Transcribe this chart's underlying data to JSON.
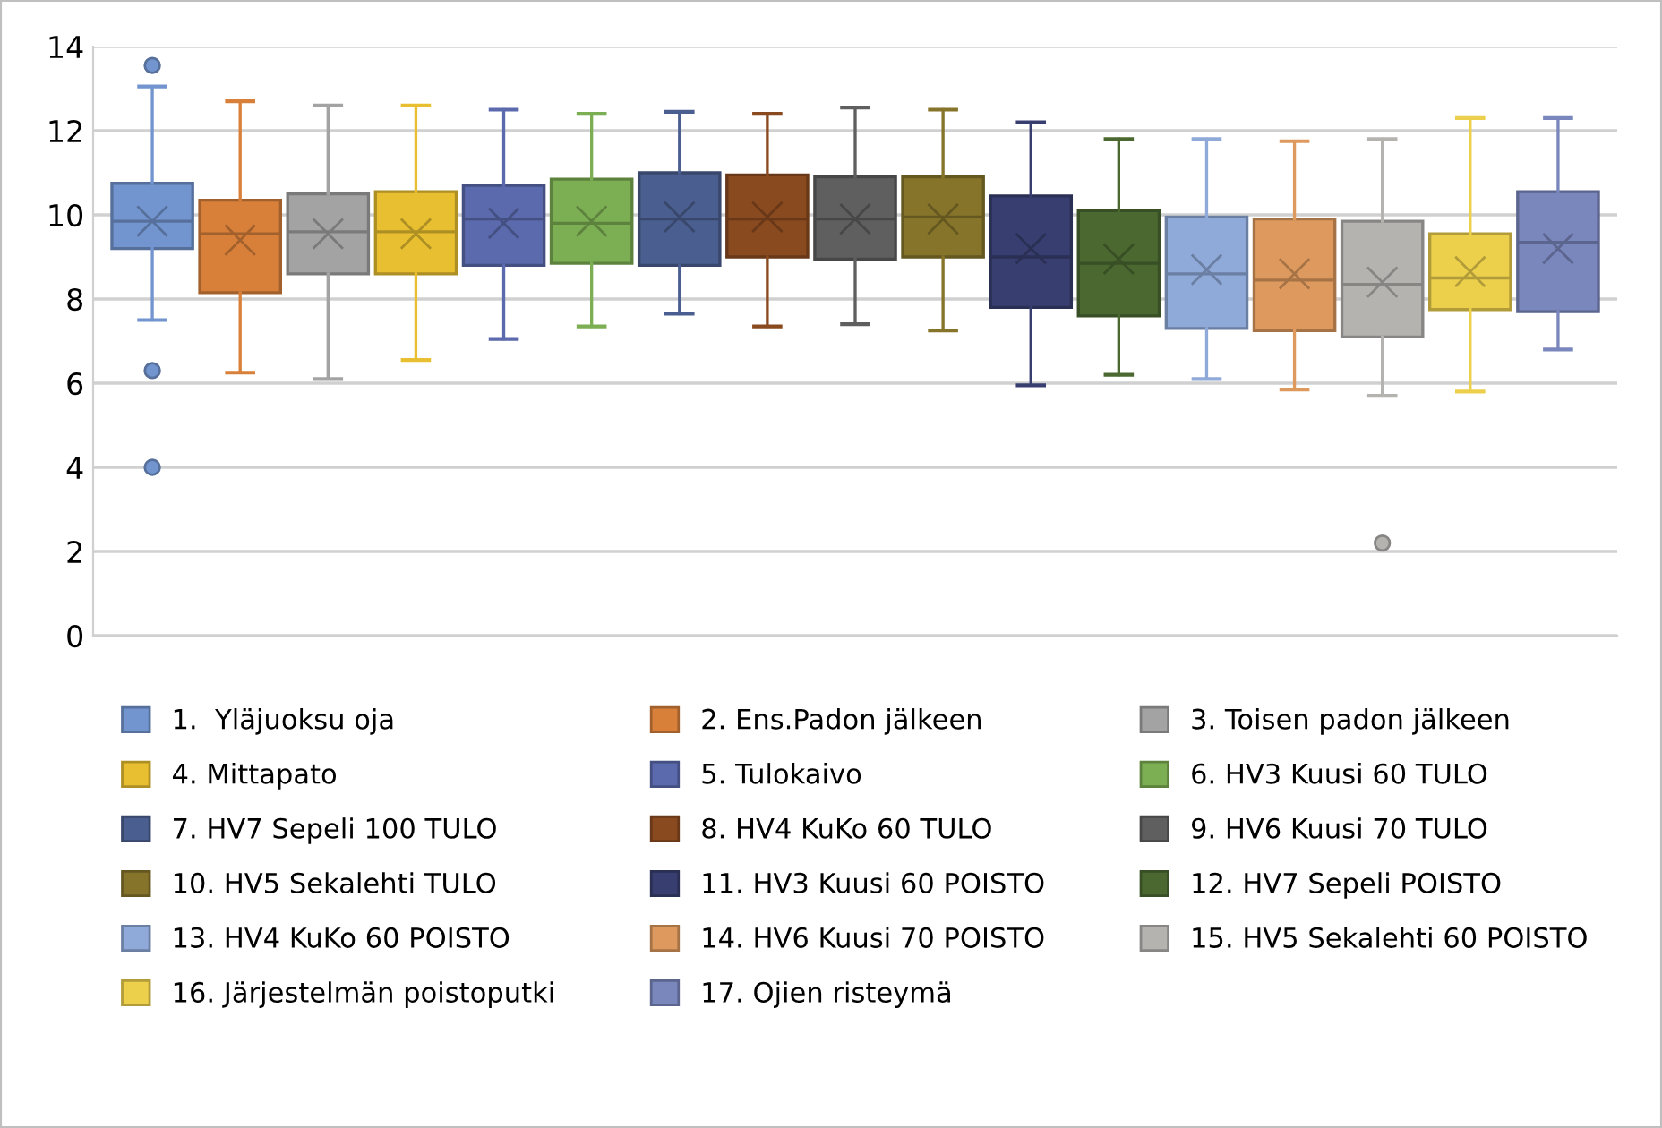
{
  "chart_data": {
    "type": "box",
    "categories": [
      null
    ],
    "ylim": [
      0,
      14
    ],
    "yticks": [
      0,
      2,
      4,
      6,
      8,
      10,
      12,
      14
    ],
    "grid": "y",
    "legend": "bottom",
    "marker": "circle",
    "series": [
      {
        "name": "1.  Yläjuoksu oja",
        "color": "#7295cf",
        "boxes": [
          {
            "low": 7.5,
            "q1": 9.2,
            "median": 9.85,
            "q3": 10.75,
            "high": 13.05,
            "mean": 9.85,
            "outliers": [
              13.55,
              6.3,
              4.0
            ]
          }
        ]
      },
      {
        "name": "2. Ens.Padon jälkeen",
        "color": "#d8803a",
        "boxes": [
          {
            "low": 6.25,
            "q1": 8.15,
            "median": 9.55,
            "q3": 10.35,
            "high": 12.7,
            "mean": 9.4
          }
        ]
      },
      {
        "name": "3. Toisen padon jälkeen",
        "color": "#a3a3a3",
        "boxes": [
          {
            "low": 6.1,
            "q1": 8.6,
            "median": 9.6,
            "q3": 10.5,
            "high": 12.6,
            "mean": 9.55
          }
        ]
      },
      {
        "name": "4. Mittapato",
        "color": "#e8bf30",
        "boxes": [
          {
            "low": 6.55,
            "q1": 8.6,
            "median": 9.6,
            "q3": 10.55,
            "high": 12.6,
            "mean": 9.55
          }
        ]
      },
      {
        "name": "5. Tulokaivo",
        "color": "#5b69ad",
        "boxes": [
          {
            "low": 7.05,
            "q1": 8.8,
            "median": 9.9,
            "q3": 10.7,
            "high": 12.5,
            "mean": 9.8
          }
        ]
      },
      {
        "name": "6. HV3 Kuusi 60 TULO",
        "color": "#7cae53",
        "boxes": [
          {
            "low": 7.35,
            "q1": 8.85,
            "median": 9.8,
            "q3": 10.85,
            "high": 12.4,
            "mean": 9.85
          }
        ]
      },
      {
        "name": "7. HV7 Sepeli 100 TULO",
        "color": "#4a5f8f",
        "boxes": [
          {
            "low": 7.65,
            "q1": 8.8,
            "median": 9.9,
            "q3": 11.0,
            "high": 12.45,
            "mean": 9.95
          }
        ]
      },
      {
        "name": "8. HV4 KuKo 60 TULO",
        "color": "#8a4a20",
        "boxes": [
          {
            "low": 7.35,
            "q1": 9.0,
            "median": 9.9,
            "q3": 10.95,
            "high": 12.4,
            "mean": 9.95
          }
        ]
      },
      {
        "name": "9. HV6 Kuusi 70 TULO",
        "color": "#5f5f5f",
        "boxes": [
          {
            "low": 7.4,
            "q1": 8.95,
            "median": 9.9,
            "q3": 10.9,
            "high": 12.55,
            "mean": 9.9
          }
        ]
      },
      {
        "name": "10. HV5 Sekalehti TULO",
        "color": "#85742a",
        "boxes": [
          {
            "low": 7.25,
            "q1": 9.0,
            "median": 9.95,
            "q3": 10.9,
            "high": 12.5,
            "mean": 9.9
          }
        ]
      },
      {
        "name": "11. HV3 Kuusi 60 POISTO",
        "color": "#383f70",
        "boxes": [
          {
            "low": 5.95,
            "q1": 7.8,
            "median": 9.0,
            "q3": 10.45,
            "high": 12.2,
            "mean": 9.2
          }
        ]
      },
      {
        "name": "12. HV7 Sepeli POISTO",
        "color": "#4a6830",
        "boxes": [
          {
            "low": 6.2,
            "q1": 7.6,
            "median": 8.85,
            "q3": 10.1,
            "high": 11.8,
            "mean": 8.95
          }
        ]
      },
      {
        "name": "13. HV4 KuKo 60 POISTO",
        "color": "#8fa9d8",
        "boxes": [
          {
            "low": 6.1,
            "q1": 7.3,
            "median": 8.6,
            "q3": 9.95,
            "high": 11.8,
            "mean": 8.7
          }
        ]
      },
      {
        "name": "14. HV6 Kuusi 70 POISTO",
        "color": "#de9a5e",
        "boxes": [
          {
            "low": 5.85,
            "q1": 7.25,
            "median": 8.45,
            "q3": 9.9,
            "high": 11.75,
            "mean": 8.6
          }
        ]
      },
      {
        "name": "15. HV5 Sekalehti 60 POISTO",
        "color": "#b4b3b0",
        "boxes": [
          {
            "low": 5.7,
            "q1": 7.1,
            "median": 8.35,
            "q3": 9.85,
            "high": 11.8,
            "mean": 8.4,
            "outliers": [
              2.2
            ]
          }
        ]
      },
      {
        "name": "16. Järjestelmän poistoputki",
        "color": "#ecd04c",
        "boxes": [
          {
            "low": 5.8,
            "q1": 7.75,
            "median": 8.5,
            "q3": 9.55,
            "high": 12.3,
            "mean": 8.65
          }
        ]
      },
      {
        "name": "17. Ojien risteymä",
        "color": "#7a87bd",
        "boxes": [
          {
            "low": 6.8,
            "q1": 7.7,
            "median": 9.35,
            "q3": 10.55,
            "high": 12.3,
            "mean": 9.2
          }
        ]
      }
    ]
  }
}
